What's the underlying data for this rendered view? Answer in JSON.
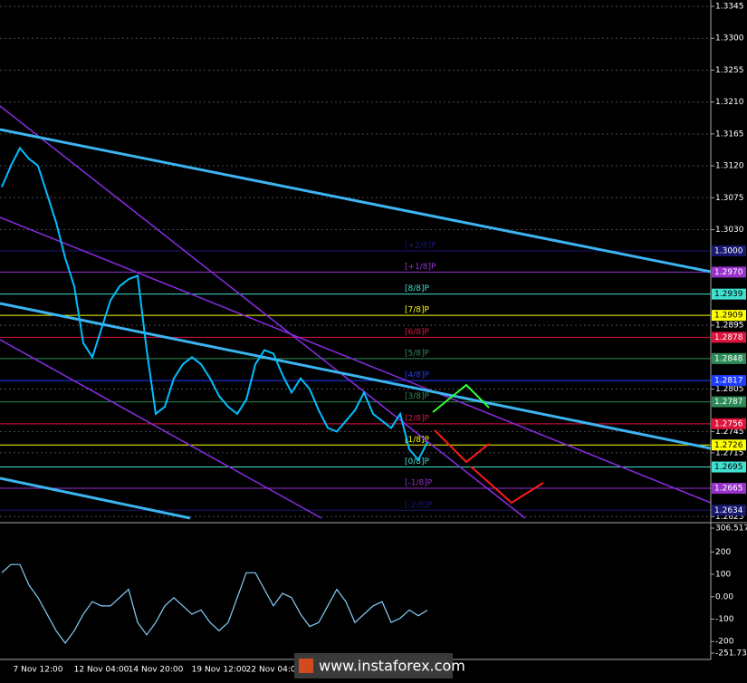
{
  "chart_data": [
    {
      "type": "line",
      "categories": [
        null,
        null,
        null,
        null,
        "7 Nov 12:00",
        null,
        null,
        null,
        null,
        null,
        null,
        "12 Nov 04:00",
        null,
        null,
        null,
        null,
        null,
        "14 Nov 20:00",
        null,
        null,
        null,
        null,
        null,
        null,
        "19 Nov 12:00",
        null,
        null,
        null,
        null,
        null,
        "22 Nov 04:00",
        null,
        null,
        null,
        null,
        null,
        null,
        null,
        null,
        null,
        null,
        null,
        null,
        null,
        null,
        null,
        null,
        null
      ],
      "values": [
        1.309,
        1.312,
        1.3145,
        1.313,
        1.312,
        1.308,
        1.304,
        1.299,
        1.295,
        1.287,
        1.285,
        1.289,
        1.293,
        1.295,
        1.296,
        1.2965,
        1.286,
        1.277,
        1.278,
        1.282,
        1.284,
        1.285,
        1.284,
        1.282,
        1.2795,
        1.278,
        1.277,
        1.279,
        1.284,
        1.286,
        1.2855,
        1.2825,
        1.28,
        1.282,
        1.2805,
        1.2775,
        1.275,
        1.2745,
        1.276,
        1.2775,
        1.28,
        1.277,
        1.276,
        1.275,
        1.277,
        1.272,
        1.2705,
        1.273
      ],
      "color": "#00bfff",
      "ylim": [
        1.2619,
        1.3354
      ],
      "yticks": [
        1.3345,
        {
          "value": 1.33,
          "label": "1.3300"
        },
        1.3255,
        {
          "value": 1.321,
          "label": "1.3210"
        },
        1.3165,
        {
          "value": 1.312,
          "label": "1.3120"
        },
        1.3075,
        {
          "value": 1.303,
          "label": "1.3030"
        },
        1.2895,
        1.2805,
        1.2745,
        1.2715,
        1.2625
      ],
      "grid": true,
      "levels": [
        {
          "value": 1.3,
          "price_label": "1.3000",
          "label": "[+2/8]P",
          "color": "#191970"
        },
        {
          "value": 1.297,
          "price_label": "1.2970",
          "label": "[+1/8]P",
          "color": "#9932cc"
        },
        {
          "value": 1.2939,
          "price_label": "1.2939",
          "label": "[8/8]P",
          "color": "#40e0d0"
        },
        {
          "value": 1.2909,
          "price_label": "1.2909",
          "label": "[7/8]P",
          "color": "#ffff00"
        },
        {
          "value": 1.2878,
          "price_label": "1.2878",
          "label": "[6/8]P",
          "color": "#dc143c"
        },
        {
          "value": 1.2848,
          "price_label": "1.2848",
          "label": "[5/8]P",
          "color": "#2e8b57"
        },
        {
          "value": 1.2817,
          "price_label": "1.2817",
          "label": "[4/8]P",
          "color": "#1e3cff"
        },
        {
          "value": 1.2787,
          "price_label": "1.2787",
          "label": "[3/8]P",
          "color": "#2e8b57"
        },
        {
          "value": 1.2756,
          "price_label": "1.2756",
          "label": "[2/8]P",
          "color": "#dc143c"
        },
        {
          "value": 1.2726,
          "price_label": "1.2726",
          "label": "[1/8]P",
          "color": "#ffff00"
        },
        {
          "value": 1.2695,
          "price_label": "1.2695",
          "label": "[0/8]P",
          "color": "#40e0d0"
        },
        {
          "value": 1.2665,
          "price_label": "1.2665",
          "label": "[-1/8]P",
          "color": "#9932cc"
        },
        {
          "value": 1.2634,
          "price_label": "1.2634",
          "label": "[-2/8]P",
          "color": "#191970"
        }
      ]
    },
    {
      "type": "line",
      "values": [
        107,
        144,
        144,
        52,
        -4,
        -78,
        -152,
        -207,
        -152,
        -78,
        -22,
        -41,
        -41,
        -4,
        33,
        -115,
        -170,
        -115,
        -41,
        -4,
        -41,
        -78,
        -59,
        -115,
        -152,
        -115,
        -4,
        107,
        107,
        33,
        -41,
        15,
        -4,
        -78,
        -133,
        -115,
        -41,
        33,
        -22,
        -115,
        -78,
        -41,
        -22,
        -115,
        -96,
        -59,
        -85,
        -60
      ],
      "color": "#87cefa",
      "ylim": [
        -251.73,
        306.5172
      ],
      "yticks": [
        306.5172,
        200,
        100,
        {
          "value": 0,
          "label": "0.00"
        },
        -100,
        -200,
        {
          "value": -251.73,
          "label": "-251.730"
        }
      ]
    }
  ],
  "watermark": "www.instaforex.com"
}
